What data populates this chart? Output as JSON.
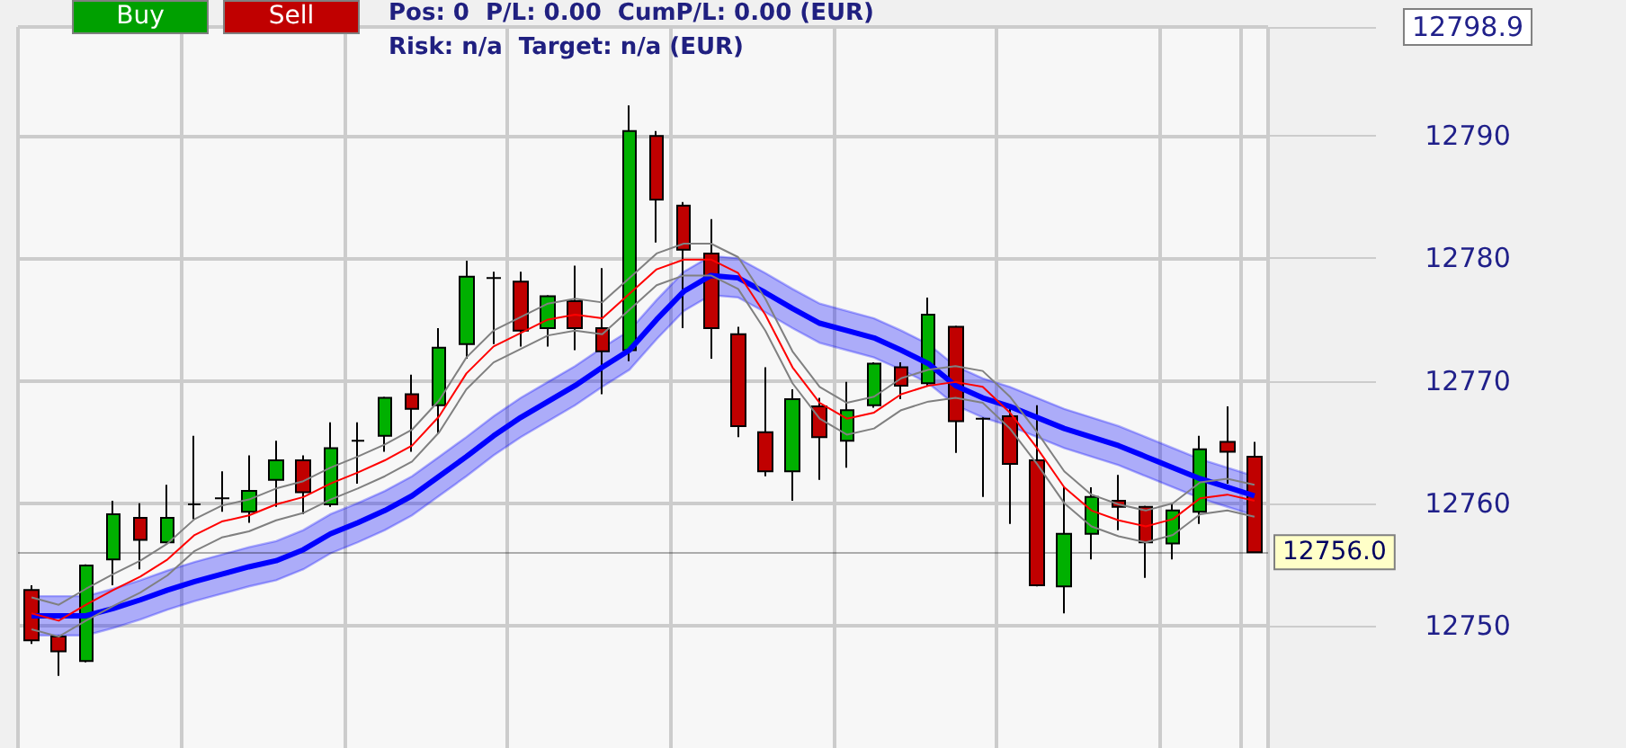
{
  "chart_data": {
    "type": "candlestick",
    "annotations": [
      "Buy",
      "Sell",
      "Pos: 0  P/L: 0.00  CumP/L: 0.00 (EUR)",
      "Risk: n/a  Target: n/a (EUR)"
    ],
    "categories": [
      null,
      null,
      null,
      null,
      null,
      null,
      null,
      null,
      null,
      null,
      null,
      null,
      null,
      null,
      null,
      null,
      null,
      null,
      null,
      null,
      null,
      null,
      null,
      null,
      null,
      null,
      null,
      null,
      null,
      null,
      null,
      null,
      null,
      null,
      null,
      null,
      null,
      null,
      null,
      null,
      null,
      null,
      null,
      null,
      null,
      null
    ],
    "ohlc": [
      [
        12752.9,
        12753.3,
        12748.5,
        12748.8
      ],
      [
        12749.1,
        12749.2,
        12745.9,
        12747.9
      ],
      [
        12747.1,
        12755.0,
        12747.0,
        12754.9
      ],
      [
        12755.4,
        12760.2,
        12753.3,
        12759.1
      ],
      [
        12758.8,
        12760.0,
        12754.6,
        12757.0
      ],
      [
        12756.8,
        12761.5,
        12756.7,
        12758.8
      ],
      [
        12759.9,
        12765.5,
        12758.7,
        12759.9
      ],
      [
        12760.4,
        12762.6,
        12759.3,
        12760.4
      ],
      [
        12759.3,
        12763.9,
        12758.4,
        12761.0
      ],
      [
        12761.9,
        12765.1,
        12759.7,
        12763.5
      ],
      [
        12763.5,
        12763.9,
        12759.1,
        12760.9
      ],
      [
        12759.9,
        12766.6,
        12759.7,
        12764.5
      ],
      [
        12765.1,
        12766.6,
        12761.6,
        12765.1
      ],
      [
        12765.5,
        12768.7,
        12764.2,
        12768.6
      ],
      [
        12768.9,
        12770.5,
        12764.2,
        12767.7
      ],
      [
        12768.0,
        12774.3,
        12765.7,
        12772.7
      ],
      [
        12773.0,
        12779.8,
        12771.8,
        12778.5
      ],
      [
        12778.4,
        12778.9,
        12773.0,
        12778.4
      ],
      [
        12778.1,
        12778.9,
        12772.8,
        12774.1
      ],
      [
        12774.3,
        12777.0,
        12772.8,
        12776.9
      ],
      [
        12776.5,
        12779.4,
        12772.5,
        12774.3
      ],
      [
        12774.3,
        12779.2,
        12768.9,
        12772.4
      ],
      [
        12772.5,
        12792.5,
        12771.6,
        12790.4
      ],
      [
        12790.0,
        12790.4,
        12781.3,
        12784.8
      ],
      [
        12784.3,
        12784.6,
        12774.3,
        12780.7
      ],
      [
        12780.4,
        12783.2,
        12771.8,
        12774.3
      ],
      [
        12773.8,
        12774.4,
        12765.4,
        12766.3
      ],
      [
        12765.8,
        12771.1,
        12762.2,
        12762.6
      ],
      [
        12762.6,
        12769.3,
        12760.2,
        12768.5
      ],
      [
        12767.9,
        12768.6,
        12761.9,
        12765.4
      ],
      [
        12765.1,
        12769.9,
        12762.9,
        12767.6
      ],
      [
        12768.0,
        12771.5,
        12767.8,
        12771.4
      ],
      [
        12771.1,
        12771.5,
        12768.5,
        12769.6
      ],
      [
        12769.8,
        12776.8,
        12769.6,
        12775.4
      ],
      [
        12774.4,
        12774.5,
        12764.1,
        12766.7
      ],
      [
        12766.9,
        12767.0,
        12760.5,
        12766.9
      ],
      [
        12767.1,
        12767.7,
        12758.3,
        12763.2
      ],
      [
        12763.5,
        12768.0,
        12753.2,
        12753.3
      ],
      [
        12753.2,
        12761.3,
        12751.0,
        12757.5
      ],
      [
        12757.5,
        12761.3,
        12755.4,
        12760.5
      ],
      [
        12760.2,
        12762.3,
        12757.8,
        12759.7
      ],
      [
        12759.7,
        12759.8,
        12753.9,
        12756.8
      ],
      [
        12756.7,
        12759.9,
        12755.4,
        12759.4
      ],
      [
        12759.3,
        12765.5,
        12758.3,
        12764.4
      ],
      [
        12765.0,
        12767.9,
        12761.6,
        12764.2
      ],
      [
        12763.8,
        12765.0,
        12756.0,
        12756.0
      ]
    ],
    "colors": [
      "#c00000",
      "#c00000",
      "#00b000",
      "#00b000",
      "#c00000",
      "#00b000",
      "#000000",
      "#000000",
      "#00b000",
      "#00b000",
      "#c00000",
      "#00b000",
      "#000000",
      "#00b000",
      "#c00000",
      "#00b000",
      "#00b000",
      "#000000",
      "#c00000",
      "#00b000",
      "#c00000",
      "#c00000",
      "#00b000",
      "#c00000",
      "#c00000",
      "#c00000",
      "#c00000",
      "#c00000",
      "#00b000",
      "#c00000",
      "#00b000",
      "#00b000",
      "#c00000",
      "#00b000",
      "#c00000",
      "#000000",
      "#c00000",
      "#c00000",
      "#00b000",
      "#00b000",
      "#c00000",
      "#c00000",
      "#00b000",
      "#00b000",
      "#c00000",
      "#c00000"
    ],
    "series": [
      {
        "type": "line",
        "color": "#0000ff",
        "values": [
          12750.8,
          12750.8,
          12750.8,
          12751.4,
          12752.1,
          12752.9,
          12753.6,
          12754.2,
          12754.8,
          12755.3,
          12756.2,
          12757.5,
          12758.4,
          12759.4,
          12760.6,
          12762.2,
          12763.8,
          12765.5,
          12767.0,
          12768.3,
          12769.6,
          12771.1,
          12772.5,
          12775.0,
          12777.3,
          12778.6,
          12778.4,
          12777.2,
          12775.9,
          12774.7,
          12774.1,
          12773.5,
          12772.5,
          12771.4,
          12769.6,
          12768.6,
          12767.9,
          12767.0,
          12766.1,
          12765.4,
          12764.7,
          12763.8,
          12762.9,
          12762.0,
          12761.3,
          12760.6
        ],
        "upper": [
          12752.4,
          12752.4,
          12752.4,
          12753.0,
          12753.7,
          12754.5,
          12755.2,
          12755.8,
          12756.4,
          12756.9,
          12757.8,
          12759.1,
          12760.0,
          12761.0,
          12762.2,
          12763.8,
          12765.4,
          12767.1,
          12768.6,
          12769.9,
          12771.2,
          12772.7,
          12774.1,
          12776.6,
          12778.9,
          12780.2,
          12780.0,
          12778.8,
          12777.5,
          12776.3,
          12775.7,
          12775.1,
          12774.1,
          12773.0,
          12771.2,
          12770.2,
          12769.5,
          12768.6,
          12767.7,
          12767.0,
          12766.3,
          12765.4,
          12764.5,
          12763.6,
          12762.9,
          12762.2
        ],
        "lower": [
          12749.2,
          12749.2,
          12749.2,
          12749.8,
          12750.5,
          12751.3,
          12752.0,
          12752.6,
          12753.2,
          12753.7,
          12754.6,
          12755.9,
          12756.8,
          12757.8,
          12759.0,
          12760.6,
          12762.2,
          12763.9,
          12765.4,
          12766.7,
          12768.0,
          12769.5,
          12770.9,
          12773.4,
          12775.7,
          12777.0,
          12776.8,
          12775.6,
          12774.3,
          12773.1,
          12772.5,
          12771.9,
          12770.9,
          12769.8,
          12768.0,
          12767.0,
          12766.3,
          12765.4,
          12764.5,
          12763.8,
          12763.1,
          12762.2,
          12761.3,
          12760.4,
          12759.7,
          12759.0
        ]
      },
      {
        "type": "line",
        "color": "#808080",
        "values": [
          12752.3,
          12751.7,
          12753.0,
          12754.2,
          12755.3,
          12756.7,
          12758.7,
          12759.8,
          12760.3,
          12761.2,
          12761.8,
          12762.9,
          12763.8,
          12764.8,
          12766.0,
          12768.4,
          12771.9,
          12774.1,
          12775.2,
          12776.3,
          12776.7,
          12776.4,
          12778.4,
          12780.4,
          12781.2,
          12781.2,
          12780.1,
          12776.7,
          12772.4,
          12769.5,
          12768.2,
          12768.7,
          12770.2,
          12770.9,
          12771.2,
          12770.8,
          12768.7,
          12765.8,
          12762.6,
          12760.7,
          12759.9,
          12759.4,
          12760.0,
          12761.7,
          12762.0,
          12761.5
        ]
      },
      {
        "type": "line",
        "color": "#808080",
        "values": [
          12749.7,
          12749.1,
          12750.4,
          12751.6,
          12752.7,
          12754.1,
          12756.1,
          12757.2,
          12757.7,
          12758.6,
          12759.2,
          12760.3,
          12761.2,
          12762.2,
          12763.4,
          12765.8,
          12769.3,
          12771.5,
          12772.6,
          12773.7,
          12774.1,
          12773.8,
          12775.8,
          12777.8,
          12778.6,
          12778.6,
          12777.5,
          12774.1,
          12769.8,
          12766.9,
          12765.6,
          12766.1,
          12767.6,
          12768.3,
          12768.6,
          12768.2,
          12766.1,
          12763.2,
          12760.0,
          12758.1,
          12757.3,
          12756.8,
          12757.4,
          12759.1,
          12759.4,
          12758.9
        ]
      },
      {
        "type": "line",
        "color": "#ff0000",
        "values": [
          12751.0,
          12750.4,
          12751.7,
          12752.9,
          12754.0,
          12755.4,
          12757.4,
          12758.5,
          12759.0,
          12759.9,
          12760.5,
          12761.6,
          12762.5,
          12763.5,
          12764.7,
          12767.1,
          12770.6,
          12772.8,
          12773.9,
          12775.0,
          12775.4,
          12775.1,
          12777.1,
          12779.1,
          12779.9,
          12779.9,
          12778.8,
          12775.4,
          12771.1,
          12768.2,
          12766.9,
          12767.4,
          12768.9,
          12769.6,
          12769.9,
          12769.5,
          12767.4,
          12764.5,
          12761.3,
          12759.4,
          12758.6,
          12758.1,
          12758.7,
          12760.4,
          12760.7,
          12760.2
        ]
      }
    ],
    "ylim": [
      12740,
      12798.9
    ],
    "yticks": [
      12750,
      12760,
      12770,
      12780,
      12790,
      12798.9
    ],
    "ref_lines": [
      {
        "axis": "y",
        "value": 12756.0,
        "label": "12756.0"
      }
    ],
    "grid": true,
    "marker": "none",
    "tick_labels": "y"
  }
}
